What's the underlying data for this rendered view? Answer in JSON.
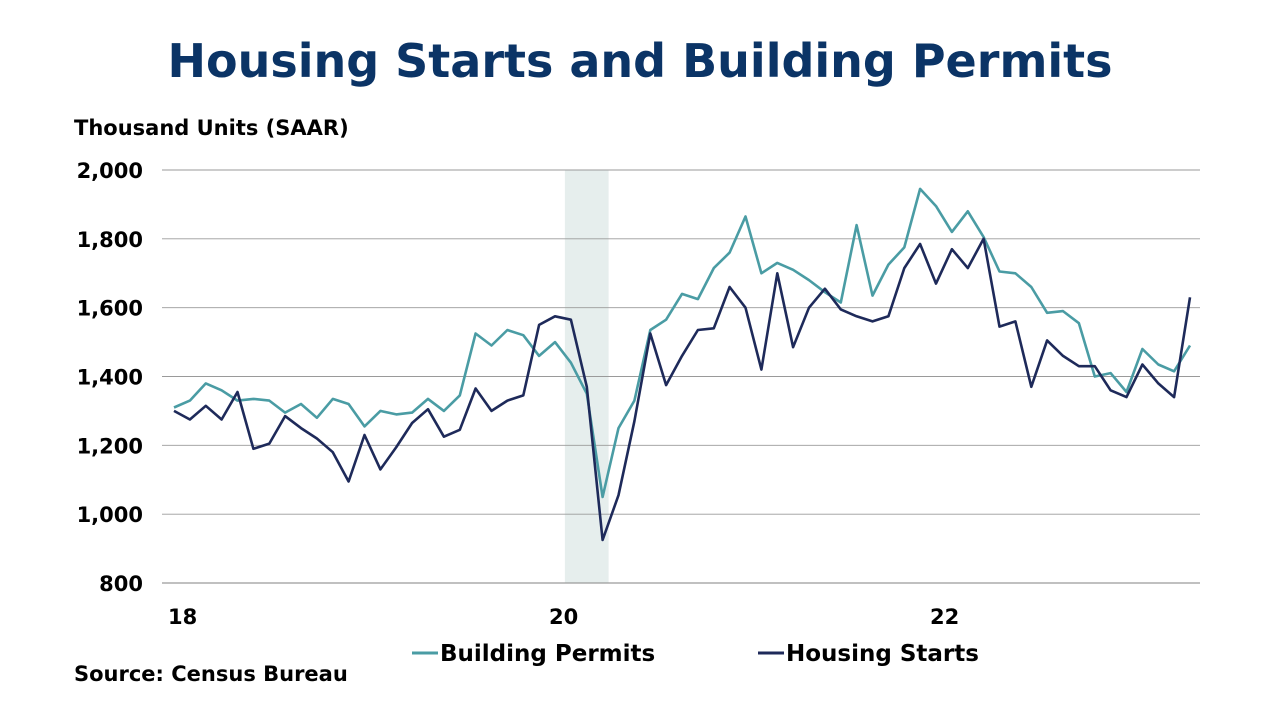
{
  "title": "Housing Starts and Building Permits",
  "source": "Source: Census Bureau",
  "colors": {
    "building_permits": "#4a9ca4",
    "housing_starts": "#1e2a5a",
    "title": "#0b3466",
    "recession_band": "#e6eeed",
    "grid": "#9a9a9a"
  },
  "chart_data": {
    "type": "line",
    "title": "Housing Starts and Building Permits",
    "ylabel": "Thousand Units (SAAR)",
    "xlabel": "",
    "ylim": [
      800,
      2000
    ],
    "yticks": [
      800,
      1000,
      1200,
      1400,
      1600,
      1800,
      2000
    ],
    "ytick_labels": [
      "800",
      "1,000",
      "1,200",
      "1,400",
      "1,600",
      "1,800",
      "2,000"
    ],
    "xticks": [
      {
        "label": "18",
        "x": "2018-01"
      },
      {
        "label": "20",
        "x": "2020-01"
      },
      {
        "label": "22",
        "x": "2022-01"
      }
    ],
    "grid": "horizontal",
    "legend_position": "bottom",
    "shaded_period": [
      "2020-02",
      "2020-04"
    ],
    "x": [
      "2018-01",
      "2018-02",
      "2018-03",
      "2018-04",
      "2018-05",
      "2018-06",
      "2018-07",
      "2018-08",
      "2018-09",
      "2018-10",
      "2018-11",
      "2018-12",
      "2019-01",
      "2019-02",
      "2019-03",
      "2019-04",
      "2019-05",
      "2019-06",
      "2019-07",
      "2019-08",
      "2019-09",
      "2019-10",
      "2019-11",
      "2019-12",
      "2020-01",
      "2020-02",
      "2020-03",
      "2020-04",
      "2020-05",
      "2020-06",
      "2020-07",
      "2020-08",
      "2020-09",
      "2020-10",
      "2020-11",
      "2020-12",
      "2021-01",
      "2021-02",
      "2021-03",
      "2021-04",
      "2021-05",
      "2021-06",
      "2021-07",
      "2021-08",
      "2021-09",
      "2021-10",
      "2021-11",
      "2021-12",
      "2022-01",
      "2022-02",
      "2022-03",
      "2022-04",
      "2022-05",
      "2022-06",
      "2022-07",
      "2022-08",
      "2022-09",
      "2022-10",
      "2022-11",
      "2022-12",
      "2023-01",
      "2023-02",
      "2023-03",
      "2023-04",
      "2023-05"
    ],
    "series": [
      {
        "name": "Building Permits",
        "values": [
          1310,
          1330,
          1380,
          1360,
          1330,
          1335,
          1330,
          1295,
          1320,
          1280,
          1335,
          1320,
          1255,
          1300,
          1290,
          1295,
          1335,
          1300,
          1345,
          1525,
          1490,
          1535,
          1520,
          1460,
          1500,
          1440,
          1350,
          1050,
          1250,
          1330,
          1535,
          1565,
          1640,
          1625,
          1715,
          1760,
          1865,
          1700,
          1730,
          1710,
          1680,
          1645,
          1615,
          1840,
          1635,
          1725,
          1775,
          1945,
          1895,
          1820,
          1880,
          1805,
          1705,
          1700,
          1660,
          1585,
          1590,
          1555,
          1400,
          1410,
          1355,
          1480,
          1435,
          1415,
          1490
        ]
      },
      {
        "name": "Housing Starts",
        "values": [
          1300,
          1275,
          1315,
          1275,
          1355,
          1190,
          1205,
          1285,
          1250,
          1220,
          1180,
          1095,
          1230,
          1130,
          1195,
          1265,
          1305,
          1225,
          1245,
          1365,
          1300,
          1330,
          1345,
          1550,
          1575,
          1565,
          1370,
          925,
          1055,
          1270,
          1525,
          1375,
          1460,
          1535,
          1540,
          1660,
          1600,
          1420,
          1700,
          1485,
          1600,
          1655,
          1595,
          1575,
          1560,
          1575,
          1715,
          1785,
          1670,
          1770,
          1715,
          1800,
          1545,
          1560,
          1370,
          1505,
          1460,
          1430,
          1430,
          1360,
          1340,
          1435,
          1380,
          1340,
          1630
        ]
      }
    ]
  }
}
